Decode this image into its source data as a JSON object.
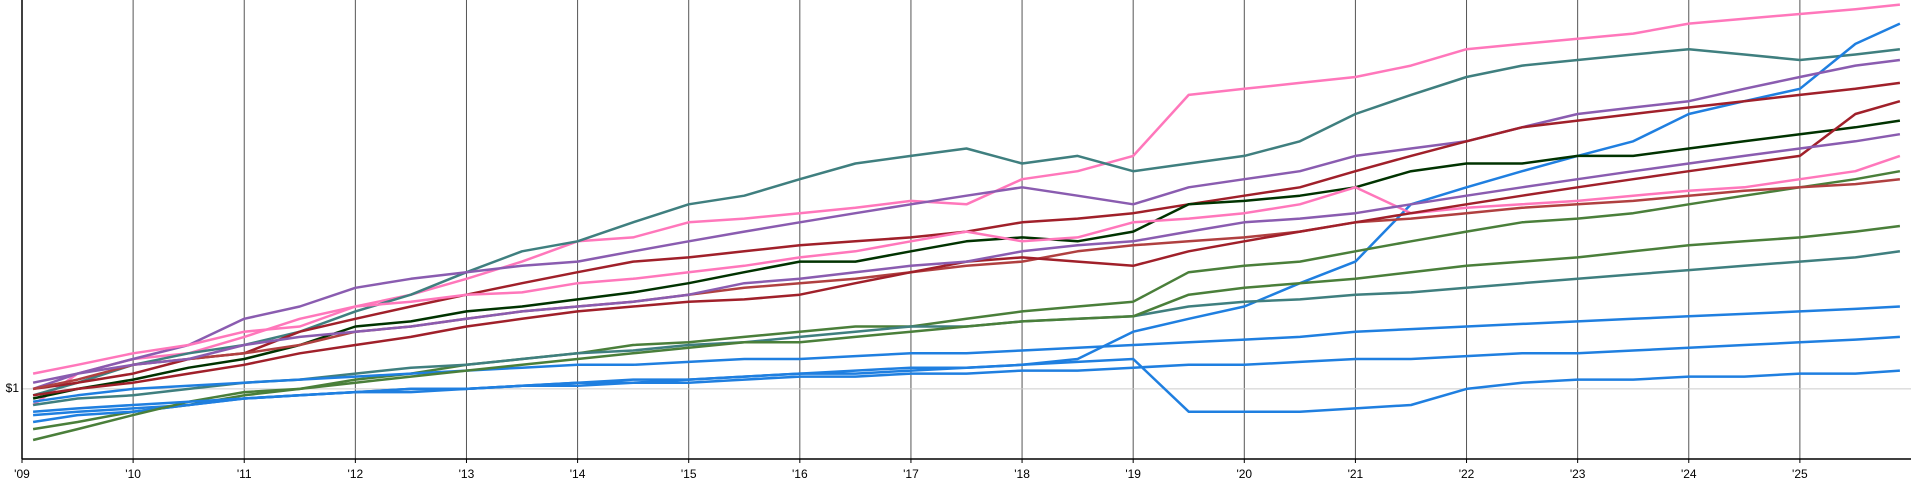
{
  "chart_data": {
    "type": "line",
    "log_y": true,
    "grid": true,
    "x": [
      2009.1,
      2009.5,
      2010,
      2010.5,
      2011,
      2011.5,
      2012,
      2012.5,
      2013,
      2013.5,
      2014,
      2014.5,
      2015,
      2015.5,
      2016,
      2016.5,
      2017,
      2017.5,
      2018,
      2018.5,
      2019,
      2019.5,
      2020,
      2020.5,
      2021,
      2021.5,
      2022,
      2022.5,
      2023,
      2023.5,
      2024,
      2024.5,
      2025,
      2025.5,
      2025.9
    ],
    "xlim": [
      2009,
      2026
    ],
    "xticks": [
      {
        "value": 2009,
        "label": "'09"
      },
      {
        "value": 2010,
        "label": "'10"
      },
      {
        "value": 2011,
        "label": "'11"
      },
      {
        "value": 2012,
        "label": "'12"
      },
      {
        "value": 2013,
        "label": "'13"
      },
      {
        "value": 2014,
        "label": "'14"
      },
      {
        "value": 2015,
        "label": "'15"
      },
      {
        "value": 2016,
        "label": "'16"
      },
      {
        "value": 2017,
        "label": "'17"
      },
      {
        "value": 2018,
        "label": "'18"
      },
      {
        "value": 2019,
        "label": "'19"
      },
      {
        "value": 2020,
        "label": "'20"
      },
      {
        "value": 2021,
        "label": "'21"
      },
      {
        "value": 2022,
        "label": "'22"
      },
      {
        "value": 2023,
        "label": "'23"
      },
      {
        "value": 2024,
        "label": "'24"
      },
      {
        "value": 2025,
        "label": "'25"
      }
    ],
    "ylim": [
      0.8,
      3.45
    ],
    "yticks": [
      {
        "value": 1,
        "label": "$1"
      }
    ],
    "series": [
      {
        "color": "#ff77bb",
        "values": [
          0.95,
          1.05,
          1.1,
          1.12,
          1.18,
          1.25,
          1.3,
          1.35,
          1.42,
          1.5,
          1.6,
          1.62,
          1.7,
          1.72,
          1.75,
          1.78,
          1.82,
          1.8,
          1.95,
          2.0,
          2.1,
          2.55,
          2.6,
          2.65,
          2.7,
          2.8,
          2.95,
          3.0,
          3.05,
          3.1,
          3.2,
          3.25,
          3.3,
          3.35,
          3.4
        ]
      },
      {
        "color": "#3f7f7f",
        "values": [
          0.98,
          1.02,
          1.08,
          1.12,
          1.15,
          1.2,
          1.28,
          1.35,
          1.45,
          1.55,
          1.6,
          1.7,
          1.8,
          1.85,
          1.95,
          2.05,
          2.1,
          2.15,
          2.05,
          2.1,
          2.0,
          2.05,
          2.1,
          2.2,
          2.4,
          2.55,
          2.7,
          2.8,
          2.85,
          2.9,
          2.95,
          2.9,
          2.85,
          2.9,
          2.95
        ]
      },
      {
        "color": "#1f7fe0",
        "values": [
          0.92,
          0.93,
          0.94,
          0.95,
          0.97,
          0.98,
          0.99,
          1.0,
          1.0,
          1.01,
          1.02,
          1.02,
          1.03,
          1.04,
          1.05,
          1.05,
          1.06,
          1.07,
          1.08,
          1.1,
          1.2,
          1.25,
          1.3,
          1.4,
          1.5,
          1.8,
          1.9,
          2.0,
          2.1,
          2.2,
          2.4,
          2.5,
          2.6,
          3.0,
          3.2
        ]
      },
      {
        "color": "#8a5cb0",
        "values": [
          1.0,
          1.05,
          1.1,
          1.15,
          1.25,
          1.3,
          1.38,
          1.42,
          1.45,
          1.48,
          1.5,
          1.55,
          1.6,
          1.65,
          1.7,
          1.75,
          1.8,
          1.85,
          1.9,
          1.85,
          1.8,
          1.9,
          1.95,
          2.0,
          2.1,
          2.15,
          2.2,
          2.3,
          2.4,
          2.45,
          2.5,
          2.6,
          2.7,
          2.8,
          2.85
        ]
      },
      {
        "color": "#a0202a",
        "values": [
          1.0,
          1.02,
          1.05,
          1.1,
          1.12,
          1.2,
          1.25,
          1.3,
          1.35,
          1.4,
          1.45,
          1.5,
          1.52,
          1.55,
          1.58,
          1.6,
          1.62,
          1.65,
          1.7,
          1.72,
          1.75,
          1.8,
          1.85,
          1.9,
          2.0,
          2.1,
          2.2,
          2.3,
          2.35,
          2.4,
          2.45,
          2.5,
          2.55,
          2.6,
          2.65
        ]
      },
      {
        "color": "#003300",
        "values": [
          0.97,
          1.0,
          1.03,
          1.07,
          1.1,
          1.15,
          1.22,
          1.24,
          1.28,
          1.3,
          1.33,
          1.36,
          1.4,
          1.45,
          1.5,
          1.5,
          1.55,
          1.6,
          1.62,
          1.6,
          1.65,
          1.8,
          1.82,
          1.85,
          1.9,
          2.0,
          2.05,
          2.05,
          2.1,
          2.1,
          2.15,
          2.2,
          2.25,
          2.3,
          2.35
        ]
      },
      {
        "color": "#4a7f3a",
        "values": [
          0.88,
          0.9,
          0.93,
          0.95,
          0.98,
          1.0,
          1.03,
          1.05,
          1.08,
          1.1,
          1.12,
          1.15,
          1.16,
          1.18,
          1.2,
          1.22,
          1.22,
          1.25,
          1.28,
          1.3,
          1.32,
          1.45,
          1.48,
          1.5,
          1.55,
          1.6,
          1.65,
          1.7,
          1.72,
          1.75,
          1.8,
          1.85,
          1.9,
          1.95,
          2.0
        ]
      },
      {
        "color": "#b04040",
        "values": [
          1.0,
          1.03,
          1.08,
          1.1,
          1.12,
          1.15,
          1.2,
          1.22,
          1.25,
          1.28,
          1.3,
          1.32,
          1.35,
          1.38,
          1.4,
          1.42,
          1.45,
          1.48,
          1.5,
          1.55,
          1.58,
          1.6,
          1.62,
          1.65,
          1.7,
          1.72,
          1.75,
          1.78,
          1.8,
          1.82,
          1.85,
          1.88,
          1.9,
          1.92,
          1.95
        ]
      },
      {
        "color": "#1f7fe0",
        "values": [
          0.9,
          0.92,
          0.93,
          0.95,
          0.97,
          0.98,
          0.99,
          1.0,
          1.0,
          1.01,
          1.02,
          1.03,
          1.03,
          1.04,
          1.05,
          1.06,
          1.07,
          1.07,
          1.08,
          1.09,
          1.1,
          0.93,
          0.93,
          0.93,
          0.94,
          0.95,
          1.0,
          1.02,
          1.03,
          1.03,
          1.04,
          1.04,
          1.05,
          1.05,
          1.06
        ]
      },
      {
        "color": "#ff77bb",
        "values": [
          1.05,
          1.08,
          1.12,
          1.15,
          1.2,
          1.22,
          1.3,
          1.32,
          1.35,
          1.36,
          1.4,
          1.42,
          1.45,
          1.48,
          1.52,
          1.55,
          1.6,
          1.65,
          1.6,
          1.62,
          1.7,
          1.72,
          1.75,
          1.8,
          1.9,
          1.75,
          1.78,
          1.8,
          1.82,
          1.85,
          1.88,
          1.9,
          1.95,
          2.0,
          2.1
        ]
      },
      {
        "color": "#3f7f7f",
        "values": [
          0.95,
          0.97,
          0.98,
          1.0,
          1.02,
          1.03,
          1.05,
          1.07,
          1.08,
          1.1,
          1.12,
          1.13,
          1.15,
          1.16,
          1.18,
          1.2,
          1.22,
          1.22,
          1.24,
          1.25,
          1.26,
          1.3,
          1.32,
          1.33,
          1.35,
          1.36,
          1.38,
          1.4,
          1.42,
          1.44,
          1.46,
          1.48,
          1.5,
          1.52,
          1.55
        ]
      },
      {
        "color": "#1f7fe0",
        "values": [
          0.96,
          0.98,
          1.0,
          1.01,
          1.02,
          1.03,
          1.04,
          1.05,
          1.06,
          1.07,
          1.08,
          1.08,
          1.09,
          1.1,
          1.1,
          1.11,
          1.12,
          1.12,
          1.13,
          1.14,
          1.15,
          1.16,
          1.17,
          1.18,
          1.2,
          1.21,
          1.22,
          1.23,
          1.24,
          1.25,
          1.26,
          1.27,
          1.28,
          1.29,
          1.3
        ]
      },
      {
        "color": "#4a7f3a",
        "values": [
          0.85,
          0.88,
          0.92,
          0.96,
          0.99,
          1.0,
          1.02,
          1.04,
          1.06,
          1.08,
          1.1,
          1.12,
          1.14,
          1.16,
          1.16,
          1.18,
          1.2,
          1.22,
          1.24,
          1.25,
          1.26,
          1.35,
          1.38,
          1.4,
          1.42,
          1.45,
          1.48,
          1.5,
          1.52,
          1.55,
          1.58,
          1.6,
          1.62,
          1.65,
          1.68
        ]
      },
      {
        "color": "#a0202a",
        "values": [
          0.98,
          1.0,
          1.02,
          1.05,
          1.08,
          1.12,
          1.15,
          1.18,
          1.22,
          1.25,
          1.28,
          1.3,
          1.32,
          1.33,
          1.35,
          1.4,
          1.45,
          1.5,
          1.52,
          1.5,
          1.48,
          1.55,
          1.6,
          1.65,
          1.7,
          1.75,
          1.8,
          1.85,
          1.9,
          1.95,
          2.0,
          2.05,
          2.1,
          2.4,
          2.5
        ]
      },
      {
        "color": "#8a5cb0",
        "values": [
          1.02,
          1.05,
          1.08,
          1.1,
          1.15,
          1.18,
          1.2,
          1.22,
          1.25,
          1.28,
          1.3,
          1.32,
          1.35,
          1.4,
          1.42,
          1.45,
          1.48,
          1.5,
          1.55,
          1.58,
          1.6,
          1.65,
          1.7,
          1.72,
          1.75,
          1.8,
          1.85,
          1.9,
          1.95,
          2.0,
          2.05,
          2.1,
          2.15,
          2.2,
          2.25
        ]
      },
      {
        "color": "#1f7fe0",
        "values": [
          0.93,
          0.94,
          0.95,
          0.96,
          0.97,
          0.98,
          0.99,
          0.99,
          1.0,
          1.01,
          1.01,
          1.02,
          1.02,
          1.03,
          1.04,
          1.04,
          1.05,
          1.05,
          1.06,
          1.06,
          1.07,
          1.08,
          1.08,
          1.09,
          1.1,
          1.1,
          1.11,
          1.12,
          1.12,
          1.13,
          1.14,
          1.15,
          1.16,
          1.17,
          1.18
        ]
      }
    ]
  }
}
